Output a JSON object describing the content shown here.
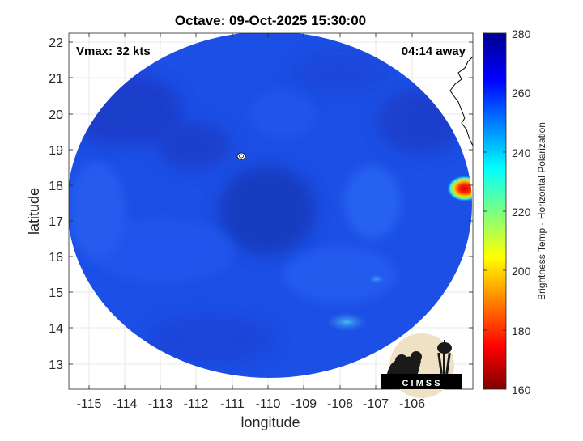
{
  "title": "Octave: 09-Oct-2025 15:30:00",
  "vmax_label": "Vmax: 32 kts",
  "away_label": "04:14 away",
  "xlabel": "longitude",
  "ylabel": "latitude",
  "x_ticks": [
    "-115",
    "-114",
    "-113",
    "-112",
    "-111",
    "-110",
    "-109",
    "-108",
    "-107",
    "-106"
  ],
  "y_ticks": [
    "22",
    "21",
    "20",
    "19",
    "18",
    "17",
    "16",
    "15",
    "14",
    "13"
  ],
  "colorbar": {
    "label": "Brightness Temp - Horizontal Polarization",
    "ticks": [
      "280",
      "260",
      "240",
      "220",
      "200",
      "180",
      "160"
    ],
    "range": [
      160,
      280
    ]
  },
  "logo_text": "C I M S S",
  "colors": {
    "swath_base": "#1c4fe6",
    "swath_dark": "#1a36c0",
    "hot_spot": "#e01010",
    "background": "#ffffff"
  }
}
